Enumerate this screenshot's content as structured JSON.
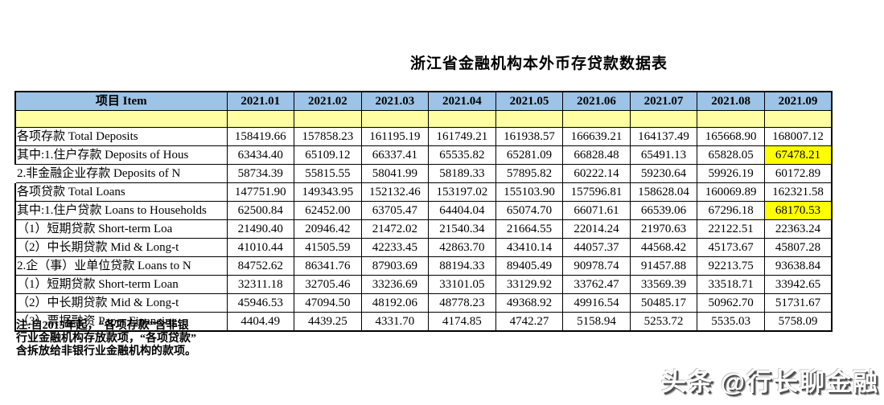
{
  "chart_data": {
    "type": "table",
    "title": "浙江省金融机构本外币存贷款数据表",
    "item_header": "项目 Item",
    "columns": [
      "2021.01",
      "2021.02",
      "2021.03",
      "2021.04",
      "2021.05",
      "2021.06",
      "2021.07",
      "2021.08",
      "2021.09"
    ],
    "rows": [
      {
        "label": "各项存款 Total Deposits",
        "indent": 0,
        "values": [
          "158419.66",
          "157858.23",
          "161195.19",
          "161749.21",
          "161938.57",
          "166639.21",
          "164137.49",
          "165668.90",
          "168007.12"
        ]
      },
      {
        "label": "其中:1.住户存款  Deposits of Hous",
        "indent": 1,
        "highlight_last": true,
        "values": [
          "63434.40",
          "65109.12",
          "66337.41",
          "65535.82",
          "65281.09",
          "66828.48",
          "65491.13",
          "65828.05",
          "67478.21"
        ]
      },
      {
        "label": "2.非金融企业存款 Deposits of N",
        "indent": 4,
        "no_left_border": true,
        "values": [
          "58734.39",
          "55815.55",
          "58041.99",
          "58189.33",
          "57895.82",
          "60222.14",
          "59230.64",
          "59926.19",
          "60172.89"
        ]
      },
      {
        "label": "各项贷款 Total Loans",
        "indent": 0,
        "values": [
          "147751.90",
          "149343.95",
          "152132.46",
          "153197.02",
          "155103.90",
          "157596.81",
          "158628.04",
          "160069.89",
          "162321.58"
        ]
      },
      {
        "label": "其中:1.住户贷款 Loans to Households",
        "indent": 1,
        "highlight_last": true,
        "values": [
          "62500.84",
          "62452.00",
          "63705.47",
          "64404.04",
          "65074.70",
          "66071.61",
          "66539.06",
          "67296.18",
          "68170.53"
        ]
      },
      {
        "label": "（1）短期贷款 Short-term  Loa",
        "indent": 3,
        "values": [
          "21490.40",
          "20946.42",
          "21472.02",
          "21540.34",
          "21664.55",
          "22014.24",
          "21970.63",
          "22122.51",
          "22363.24"
        ]
      },
      {
        "label": "（2）中长期贷款 Mid & Long-t",
        "indent": 3,
        "values": [
          "41010.44",
          "41505.59",
          "42233.45",
          "42863.70",
          "43410.14",
          "44057.37",
          "44568.42",
          "45173.67",
          "45807.28"
        ]
      },
      {
        "label": "2.企（事）业单位贷款 Loans to N",
        "indent": 2,
        "values": [
          "84752.62",
          "86341.76",
          "87903.69",
          "88194.33",
          "89405.49",
          "90978.74",
          "91457.88",
          "92213.75",
          "93638.84"
        ]
      },
      {
        "label": "（1）短期贷款 Short-term Loan",
        "indent": 3,
        "values": [
          "32311.18",
          "32705.46",
          "33236.69",
          "33101.05",
          "33129.92",
          "33762.47",
          "33569.39",
          "33518.71",
          "33942.65"
        ]
      },
      {
        "label": "（2）中长期贷款 Mid & Long-t",
        "indent": 3,
        "values": [
          "45946.53",
          "47094.50",
          "48192.06",
          "48778.23",
          "49368.92",
          "49916.54",
          "50485.17",
          "50962.70",
          "51731.67"
        ]
      },
      {
        "label": "（3）票据融资 Paper Financing",
        "indent": 3,
        "values": [
          "4404.49",
          "4439.25",
          "4331.70",
          "4174.85",
          "4742.27",
          "5158.94",
          "5253.72",
          "5535.03",
          "5758.09"
        ]
      }
    ],
    "highlighted_cells": [
      {
        "row_label": "其中:1.住户存款  Deposits of Hous",
        "column": "2021.09",
        "value": "67478.21"
      },
      {
        "row_label": "其中:1.住户贷款 Loans to Households",
        "column": "2021.09",
        "value": "68170.53"
      }
    ]
  },
  "colors": {
    "header_blue": "#9dc3e6",
    "band_yellow": "#ffffa2",
    "highlight_yellow": "#ffff00",
    "border_black": "#000000"
  },
  "footnote_lines": [
    "注:自2015年起，“各项存款”含非银",
    "行业金融机构存放款项，“各项贷款”",
    "含拆放给非银行业金融机构的款项。"
  ],
  "watermark": {
    "brand": "头条",
    "handle": "@行长聊金融"
  }
}
